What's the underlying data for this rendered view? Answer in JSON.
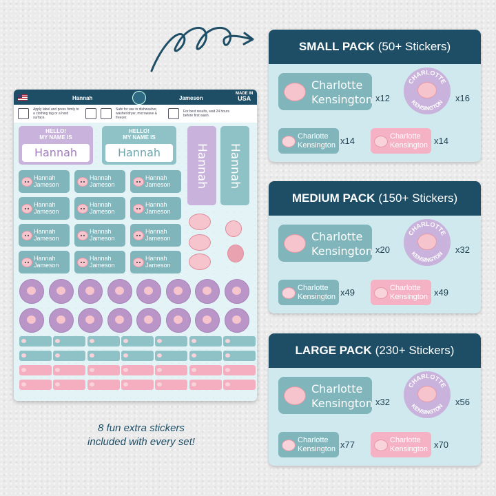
{
  "sheet": {
    "name1": "Hannah",
    "name2": "Jameson",
    "made_in": "MADE IN",
    "usa": "USA",
    "instructions": [
      "Apply label and press firmly to a clothing tag or a hard surface.",
      "Safe for use in dishwasher, washer/dryer, microwave & freezer.",
      "For best results, wait 24 hours before first wash."
    ],
    "hello_line1": "HELLO!",
    "hello_line2": "MY NAME IS",
    "full_name": "Hannah Jameson",
    "round_top": "HANNAH",
    "round_bottom": "JAMESON"
  },
  "caption_line1": "8 fun extra stickers",
  "caption_line2": "included with every set!",
  "sample": {
    "first": "Charlotte",
    "last": "Kensington",
    "round_top": "CHARLOTTE",
    "round_bottom": "KENSINGTON"
  },
  "packs": [
    {
      "title": "SMALL PACK",
      "subtitle": "(50+ Stickers)",
      "q_big": "x12",
      "q_round": "x16",
      "q_teal": "x14",
      "q_pink": "x14"
    },
    {
      "title": "MEDIUM PACK",
      "subtitle": "(150+ Stickers)",
      "q_big": "x20",
      "q_round": "x32",
      "q_teal": "x49",
      "q_pink": "x49"
    },
    {
      "title": "LARGE PACK",
      "subtitle": "(230+ Stickers)",
      "q_big": "x32",
      "q_round": "x56",
      "q_teal": "x77",
      "q_pink": "x70"
    }
  ],
  "colors": {
    "navy": "#1d4e66",
    "teal": "#7fb5bb",
    "lavender": "#c9b2dc",
    "pink": "#f4b2c4",
    "panel": "#cfe9ee"
  }
}
